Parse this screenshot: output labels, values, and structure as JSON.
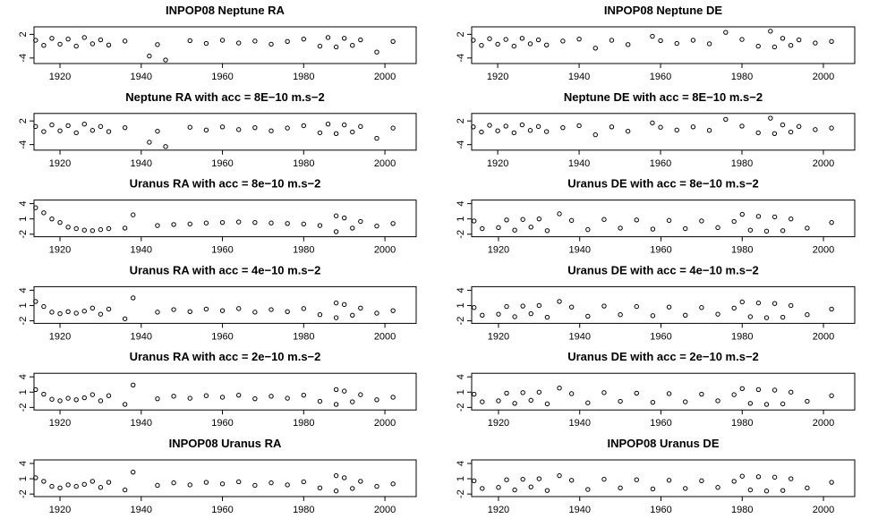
{
  "chart_data": [
    {
      "type": "scatter",
      "title": "INPOP08 Neptune RA",
      "color": "#000000",
      "x": [
        1914,
        1916,
        1918,
        1920,
        1922,
        1924,
        1926,
        1928,
        1930,
        1932,
        1936,
        1942,
        1944,
        1946,
        1952,
        1956,
        1960,
        1964,
        1968,
        1972,
        1976,
        1980,
        1984,
        1986,
        1988,
        1990,
        1992,
        1994,
        1998,
        2002
      ],
      "values": [
        0.5,
        -0.8,
        1,
        -0.5,
        0.8,
        -1,
        1.2,
        -0.4,
        0.6,
        -0.7,
        0.3,
        -3.5,
        -0.6,
        -4.5,
        0.4,
        -0.3,
        0.5,
        -0.2,
        0.3,
        -0.5,
        0.2,
        0.8,
        -1,
        1.2,
        -1.2,
        1,
        -0.8,
        0.6,
        -2.5,
        0.2
      ],
      "xlim": [
        1913.6,
        2007.7
      ],
      "ylim": [
        -5.4,
        3.9
      ],
      "xticks": [
        1920,
        1940,
        1960,
        1980,
        2000
      ],
      "yticks": [
        -4,
        2
      ]
    },
    {
      "type": "scatter",
      "title": "INPOP08 Neptune DE",
      "color": "#000000",
      "x": [
        1914,
        1916,
        1918,
        1920,
        1922,
        1924,
        1926,
        1928,
        1930,
        1932,
        1936,
        1940,
        1944,
        1948,
        1952,
        1958,
        1960,
        1964,
        1968,
        1972,
        1976,
        1980,
        1984,
        1987,
        1988,
        1990,
        1992,
        1994,
        1998,
        2002
      ],
      "values": [
        0.5,
        -0.8,
        0.9,
        -0.5,
        0.7,
        -1,
        1,
        -0.4,
        0.6,
        -0.7,
        0.3,
        0.8,
        -1.5,
        0.5,
        -0.6,
        1.5,
        0.4,
        -0.3,
        0.5,
        -0.4,
        2.5,
        0.7,
        -1,
        2.8,
        -1.2,
        1,
        -0.8,
        0.6,
        -0.2,
        0.2
      ],
      "xlim": [
        1913.6,
        2007.7
      ],
      "ylim": [
        -5.4,
        3.9
      ],
      "xticks": [
        1920,
        1940,
        1960,
        1980,
        2000
      ],
      "yticks": [
        -4,
        2
      ]
    },
    {
      "type": "scatter",
      "title": "Neptune RA with acc = 8E−10 m.s−2",
      "color": "#000000",
      "x": [
        1914,
        1916,
        1918,
        1920,
        1922,
        1924,
        1926,
        1928,
        1930,
        1932,
        1936,
        1942,
        1944,
        1946,
        1952,
        1956,
        1960,
        1964,
        1968,
        1972,
        1976,
        1980,
        1984,
        1986,
        1988,
        1990,
        1992,
        1994,
        1998,
        2002
      ],
      "values": [
        0.6,
        -0.7,
        1,
        -0.5,
        0.8,
        -1,
        1.2,
        -0.4,
        0.6,
        -0.7,
        0.3,
        -3.4,
        -0.6,
        -4.5,
        0.4,
        -0.3,
        0.5,
        -0.2,
        0.3,
        -0.5,
        0.2,
        0.8,
        -1,
        1.2,
        -1.2,
        1,
        -0.8,
        0.6,
        -2.4,
        0.2
      ],
      "xlim": [
        1913.6,
        2007.7
      ],
      "ylim": [
        -5.4,
        3.9
      ],
      "xticks": [
        1920,
        1940,
        1960,
        1980,
        2000
      ],
      "yticks": [
        -4,
        2
      ]
    },
    {
      "type": "scatter",
      "title": "Neptune DE with acc = 8E−10 m.s−2",
      "color": "#000000",
      "x": [
        1914,
        1916,
        1918,
        1920,
        1922,
        1924,
        1926,
        1928,
        1930,
        1932,
        1936,
        1940,
        1944,
        1948,
        1952,
        1958,
        1960,
        1964,
        1968,
        1972,
        1976,
        1980,
        1984,
        1987,
        1988,
        1990,
        1992,
        1994,
        1998,
        2002
      ],
      "values": [
        0.5,
        -0.8,
        0.9,
        -0.5,
        0.7,
        -1,
        1,
        -0.4,
        0.6,
        -0.7,
        0.3,
        0.8,
        -1.5,
        0.5,
        -0.6,
        1.5,
        0.4,
        -0.3,
        0.5,
        -0.4,
        2.4,
        0.7,
        -1,
        2.7,
        -1.2,
        1,
        -0.8,
        0.6,
        -0.2,
        0.2
      ],
      "xlim": [
        1913.6,
        2007.7
      ],
      "ylim": [
        -5.4,
        3.9
      ],
      "xticks": [
        1920,
        1940,
        1960,
        1980,
        2000
      ],
      "yticks": [
        -4,
        2
      ]
    },
    {
      "type": "scatter",
      "title": "Uranus RA with acc = 8e−10 m.s−2",
      "color": "#000000",
      "x": [
        1914,
        1916,
        1918,
        1920,
        1922,
        1924,
        1926,
        1928,
        1930,
        1932,
        1936,
        1938,
        1944,
        1948,
        1952,
        1956,
        1960,
        1964,
        1968,
        1972,
        1976,
        1980,
        1984,
        1988,
        1988,
        1990,
        1992,
        1994,
        1998,
        2002
      ],
      "values": [
        3.2,
        2.2,
        1.0,
        0.3,
        -0.6,
        -0.9,
        -1.2,
        -1.3,
        -1.1,
        -0.9,
        -0.8,
        1.8,
        -0.3,
        -0.1,
        0,
        0.2,
        0.3,
        0.4,
        0.3,
        0.2,
        0.1,
        0,
        -0.3,
        1.6,
        -1.5,
        1.2,
        -0.8,
        0.5,
        -0.4,
        0.1
      ],
      "xlim": [
        1913.6,
        2007.7
      ],
      "ylim": [
        -2.5,
        4.7
      ],
      "xticks": [
        1920,
        1940,
        1960,
        1980,
        2000
      ],
      "yticks": [
        -2,
        1,
        4
      ]
    },
    {
      "type": "scatter",
      "title": "Uranus DE with acc = 8e−10 m.s−2",
      "color": "#000000",
      "x": [
        1914,
        1916,
        1920,
        1922,
        1924,
        1926,
        1928,
        1930,
        1932,
        1935,
        1938,
        1942,
        1946,
        1950,
        1954,
        1958,
        1962,
        1966,
        1970,
        1974,
        1978,
        1980,
        1982,
        1984,
        1986,
        1988,
        1990,
        1992,
        1996,
        2002
      ],
      "values": [
        0.6,
        -0.9,
        -0.7,
        0.8,
        -1.2,
        0.9,
        -0.6,
        1.0,
        -1.3,
        2.0,
        0.7,
        -1.1,
        0.9,
        -0.8,
        0.8,
        -1.0,
        0.7,
        -0.9,
        0.6,
        -0.7,
        0.5,
        1.9,
        -1.2,
        1.5,
        -1.4,
        1.4,
        -1.3,
        1.0,
        -0.8,
        0.3
      ],
      "xlim": [
        1913.4,
        2007.7
      ],
      "ylim": [
        -2.5,
        4.7
      ],
      "xticks": [
        1920,
        1940,
        1960,
        1980,
        2000
      ],
      "yticks": [
        -2,
        1,
        4
      ]
    },
    {
      "type": "scatter",
      "title": "Uranus RA with acc = 4e−10 m.s−2",
      "color": "#000000",
      "x": [
        1914,
        1916,
        1918,
        1920,
        1922,
        1924,
        1926,
        1928,
        1930,
        1932,
        1936,
        1938,
        1944,
        1948,
        1952,
        1956,
        1960,
        1964,
        1968,
        1972,
        1976,
        1980,
        1984,
        1988,
        1988,
        1990,
        1992,
        1994,
        1998,
        2002
      ],
      "values": [
        1.8,
        0.8,
        -0.3,
        -0.6,
        -0.2,
        -0.5,
        -0.1,
        0.5,
        -0.7,
        0.3,
        -1.6,
        2.5,
        -0.3,
        0.2,
        -0.2,
        0.3,
        0,
        0.4,
        -0.3,
        0.2,
        -0.2,
        0.4,
        -0.8,
        1.5,
        -1.4,
        1.2,
        -0.9,
        0.5,
        -0.5,
        0
      ],
      "xlim": [
        1913.6,
        2007.7
      ],
      "ylim": [
        -2.5,
        4.7
      ],
      "xticks": [
        1920,
        1940,
        1960,
        1980,
        2000
      ],
      "yticks": [
        -2,
        1,
        4
      ]
    },
    {
      "type": "scatter",
      "title": "Uranus DE with acc = 4e−10 m.s−2",
      "color": "#000000",
      "x": [
        1914,
        1916,
        1920,
        1922,
        1924,
        1926,
        1928,
        1930,
        1932,
        1935,
        1938,
        1942,
        1946,
        1950,
        1954,
        1958,
        1962,
        1966,
        1970,
        1974,
        1978,
        1980,
        1982,
        1984,
        1986,
        1988,
        1990,
        1992,
        1996,
        2002
      ],
      "values": [
        0.6,
        -0.9,
        -0.7,
        0.8,
        -1.2,
        0.9,
        -0.6,
        1.0,
        -1.3,
        1.8,
        0.7,
        -1.1,
        0.9,
        -0.8,
        0.8,
        -1.0,
        0.7,
        -0.9,
        0.6,
        -0.7,
        0.5,
        1.7,
        -1.2,
        1.5,
        -1.4,
        1.4,
        -1.3,
        1.0,
        -0.8,
        0.3
      ],
      "xlim": [
        1913.4,
        2007.7
      ],
      "ylim": [
        -2.5,
        4.7
      ],
      "xticks": [
        1920,
        1940,
        1960,
        1980,
        2000
      ],
      "yticks": [
        -2,
        1,
        4
      ]
    },
    {
      "type": "scatter",
      "title": "Uranus RA with acc = 2e−10 m.s−2",
      "color": "#000000",
      "x": [
        1914,
        1916,
        1918,
        1920,
        1922,
        1924,
        1926,
        1928,
        1930,
        1932,
        1936,
        1938,
        1944,
        1948,
        1952,
        1956,
        1960,
        1964,
        1968,
        1972,
        1976,
        1980,
        1984,
        1988,
        1988,
        1990,
        1992,
        1994,
        1998,
        2002
      ],
      "values": [
        1.5,
        0.6,
        -0.4,
        -0.7,
        -0.2,
        -0.5,
        -0.1,
        0.5,
        -0.7,
        0.3,
        -1.4,
        2.4,
        -0.3,
        0.2,
        -0.2,
        0.3,
        0,
        0.4,
        -0.3,
        0.2,
        -0.2,
        0.4,
        -0.8,
        1.5,
        -1.4,
        1.2,
        -0.9,
        0.5,
        -0.5,
        0
      ],
      "xlim": [
        1913.6,
        2007.7
      ],
      "ylim": [
        -2.5,
        4.7
      ],
      "xticks": [
        1920,
        1940,
        1960,
        1980,
        2000
      ],
      "yticks": [
        -2,
        1,
        4
      ]
    },
    {
      "type": "scatter",
      "title": "Uranus DE with acc = 2e−10 m.s−2",
      "color": "#000000",
      "x": [
        1914,
        1916,
        1920,
        1922,
        1924,
        1926,
        1928,
        1930,
        1932,
        1935,
        1938,
        1942,
        1946,
        1950,
        1954,
        1958,
        1962,
        1966,
        1970,
        1974,
        1978,
        1980,
        1982,
        1984,
        1986,
        1988,
        1990,
        1992,
        1996,
        2002
      ],
      "values": [
        0.6,
        -0.9,
        -0.7,
        0.8,
        -1.2,
        0.9,
        -0.6,
        1.0,
        -1.3,
        1.8,
        0.7,
        -1.1,
        0.9,
        -0.8,
        0.8,
        -1.0,
        0.7,
        -0.9,
        0.6,
        -0.7,
        0.5,
        1.7,
        -1.2,
        1.5,
        -1.4,
        1.4,
        -1.3,
        1.0,
        -0.8,
        0.3
      ],
      "xlim": [
        1913.4,
        2007.7
      ],
      "ylim": [
        -2.5,
        4.7
      ],
      "xticks": [
        1920,
        1940,
        1960,
        1980,
        2000
      ],
      "yticks": [
        -2,
        1,
        4
      ]
    },
    {
      "type": "scatter",
      "title": "INPOP08 Uranus RA",
      "color": "#000000",
      "x": [
        1914,
        1916,
        1918,
        1920,
        1922,
        1924,
        1926,
        1928,
        1930,
        1932,
        1936,
        1938,
        1944,
        1948,
        1952,
        1956,
        1960,
        1964,
        1968,
        1972,
        1976,
        1980,
        1984,
        1988,
        1988,
        1990,
        1992,
        1994,
        1998,
        2002
      ],
      "values": [
        1.2,
        0.5,
        -0.5,
        -0.8,
        -0.2,
        -0.5,
        -0.1,
        0.5,
        -0.7,
        0.3,
        -1.2,
        2.3,
        -0.3,
        0.2,
        -0.2,
        0.3,
        0,
        0.4,
        -0.3,
        0.2,
        -0.2,
        0.4,
        -0.8,
        1.6,
        -1.4,
        1.2,
        -0.9,
        0.5,
        -0.5,
        0
      ],
      "xlim": [
        1913.6,
        2007.7
      ],
      "ylim": [
        -2.5,
        4.7
      ],
      "xticks": [
        1920,
        1940,
        1960,
        1980,
        2000
      ],
      "yticks": [
        -2,
        1,
        4
      ]
    },
    {
      "type": "scatter",
      "title": "INPOP08 Uranus DE",
      "color": "#000000",
      "x": [
        1914,
        1916,
        1920,
        1922,
        1924,
        1926,
        1928,
        1930,
        1932,
        1935,
        1938,
        1942,
        1946,
        1950,
        1954,
        1958,
        1962,
        1966,
        1970,
        1974,
        1978,
        1980,
        1982,
        1984,
        1986,
        1988,
        1990,
        1992,
        1996,
        2002
      ],
      "values": [
        0.6,
        -0.9,
        -0.7,
        0.8,
        -1.2,
        0.9,
        -0.6,
        1.0,
        -1.3,
        1.6,
        0.7,
        -1.1,
        0.9,
        -0.8,
        0.8,
        -1.0,
        0.7,
        -0.9,
        0.6,
        -0.7,
        0.5,
        1.5,
        -1.2,
        1.4,
        -1.4,
        1.3,
        -1.3,
        1.0,
        -0.8,
        0.3
      ],
      "xlim": [
        1913.4,
        2007.7
      ],
      "ylim": [
        -2.5,
        4.7
      ],
      "xticks": [
        1920,
        1940,
        1960,
        1980,
        2000
      ],
      "yticks": [
        -2,
        1,
        4
      ]
    }
  ]
}
